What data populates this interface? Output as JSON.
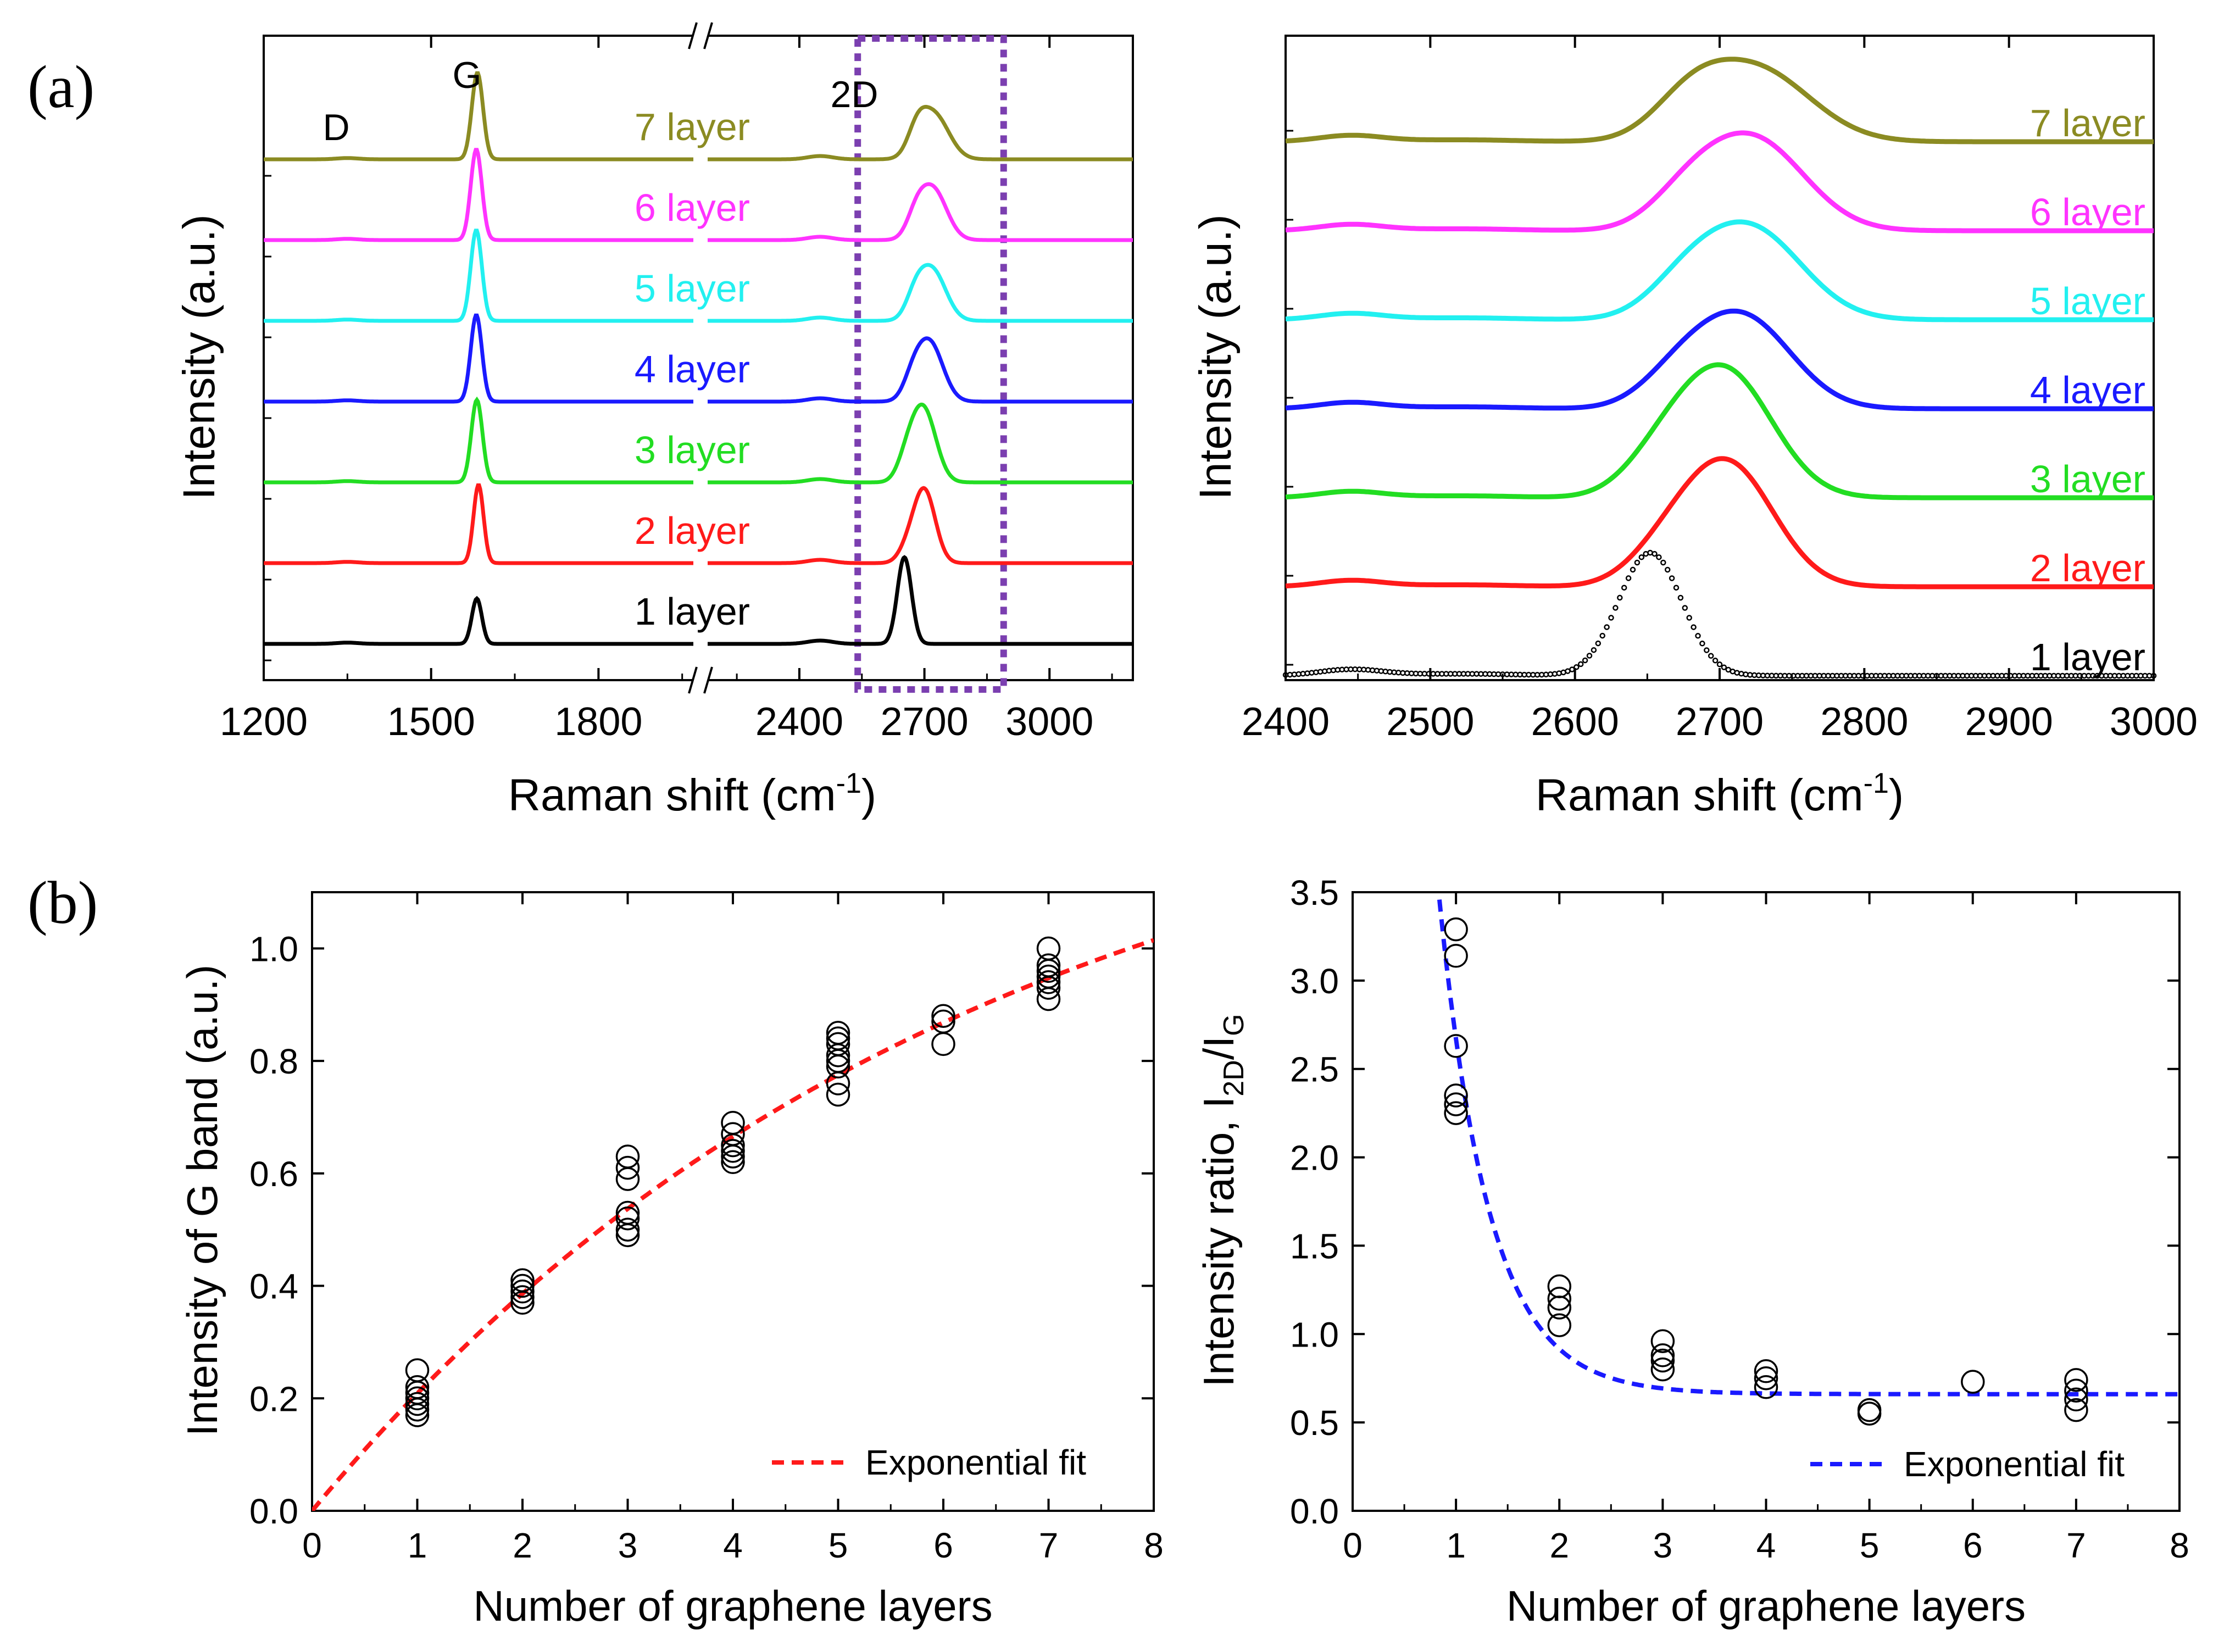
{
  "panel_labels": {
    "a": "(a)",
    "b": "(b)"
  },
  "chart_data": [
    {
      "id": "a_left",
      "type": "line",
      "ylabel": "Intensity (a.u.)",
      "xlabel": "Raman shift (cm",
      "xlabel_sup": "-1",
      "xlabel_close": ")",
      "x_tick_labels": [
        "1200",
        "1500",
        "1800",
        "2400",
        "2700",
        "3000"
      ],
      "x_break_marker": "//",
      "xlim_segments": [
        [
          1200,
          1970
        ],
        [
          2180,
          3200
        ]
      ],
      "peak_labels": [
        "D",
        "G",
        "2D"
      ],
      "highlight_box_range": [
        2540,
        2890
      ],
      "highlight_box_color": "#7b3fb0",
      "series": [
        {
          "name": "1 layer",
          "color": "#000000",
          "offset": 0,
          "g_height": 0.55,
          "g_center": 1582,
          "g_width": 9,
          "d2_height": 1.05,
          "d2_center": 2652,
          "d2_width": 17,
          "shoulder_height": 0
        },
        {
          "name": "2 layer",
          "color": "#ff1a1a",
          "offset": 1,
          "g_height": 0.95,
          "g_center": 1585,
          "g_width": 9,
          "d2_height": 0.88,
          "d2_center": 2700,
          "d2_width": 26,
          "shoulder_height": 0.15
        },
        {
          "name": "3 layer",
          "color": "#22dd22",
          "offset": 2,
          "g_height": 1.0,
          "g_center": 1582,
          "g_width": 10,
          "d2_height": 0.9,
          "d2_center": 2697,
          "d2_width": 30,
          "shoulder_height": 0.2
        },
        {
          "name": "4 layer",
          "color": "#1a1aff",
          "offset": 3,
          "g_height": 1.05,
          "g_center": 1581,
          "g_width": 10,
          "d2_height": 0.72,
          "d2_center": 2712,
          "d2_width": 32,
          "shoulder_height": 0.2
        },
        {
          "name": "5 layer",
          "color": "#22f0f0",
          "offset": 4,
          "g_height": 1.1,
          "g_center": 1581,
          "g_width": 10,
          "d2_height": 0.62,
          "d2_center": 2718,
          "d2_width": 33,
          "shoulder_height": 0.22
        },
        {
          "name": "6 layer",
          "color": "#ff33ff",
          "offset": 5,
          "g_height": 1.1,
          "g_center": 1581,
          "g_width": 10,
          "d2_height": 0.62,
          "d2_center": 2720,
          "d2_width": 33,
          "shoulder_height": 0.22
        },
        {
          "name": "7 layer",
          "color": "#8b8b22",
          "offset": 6,
          "g_height": 1.05,
          "g_center": 1583,
          "g_width": 10,
          "d2_height": 0.55,
          "d2_center": 2722,
          "d2_width": 36,
          "shoulder_height": 0.25
        }
      ]
    },
    {
      "id": "a_right",
      "type": "line",
      "ylabel": "Intensity (a.u.)",
      "xlabel": "Raman shift (cm",
      "xlabel_sup": "-1",
      "xlabel_close": ")",
      "xlim": [
        2400,
        3000
      ],
      "x_ticks": [
        2400,
        2500,
        2600,
        2700,
        2800,
        2900,
        3000
      ],
      "series": [
        {
          "name": "1 layer",
          "color": "#000000",
          "offset": 0,
          "height": 1.6,
          "center": 2652,
          "width": 22,
          "shoulder_height": 0,
          "dotted": true
        },
        {
          "name": "2 layer",
          "color": "#ff1a1a",
          "offset": 1,
          "height": 1.6,
          "center": 2705,
          "width": 32,
          "shoulder_height": 0.3,
          "dotted": false
        },
        {
          "name": "3 layer",
          "color": "#22dd22",
          "offset": 2,
          "height": 1.65,
          "center": 2703,
          "width": 33,
          "shoulder_height": 0.35,
          "dotted": false
        },
        {
          "name": "4 layer",
          "color": "#1a1aff",
          "offset": 3,
          "height": 1.2,
          "center": 2715,
          "width": 34,
          "shoulder_height": 0.3,
          "dotted": false
        },
        {
          "name": "5 layer",
          "color": "#22f0f0",
          "offset": 4,
          "height": 1.2,
          "center": 2720,
          "width": 36,
          "shoulder_height": 0.3,
          "dotted": false
        },
        {
          "name": "6 layer",
          "color": "#ff33ff",
          "offset": 5,
          "height": 1.2,
          "center": 2722,
          "width": 36,
          "shoulder_height": 0.3,
          "dotted": false
        },
        {
          "name": "7 layer",
          "color": "#8b8b22",
          "offset": 6,
          "height": 0.95,
          "center": 2724,
          "width": 38,
          "shoulder_height": 0.4,
          "dotted": false
        }
      ]
    },
    {
      "id": "b_left",
      "type": "scatter",
      "xlabel": "Number of graphene layers",
      "ylabel": "Intensity of G band (a.u.)",
      "xlim": [
        0,
        8
      ],
      "ylim": [
        0,
        1.1
      ],
      "x_ticks": [
        0,
        1,
        2,
        3,
        4,
        5,
        6,
        7,
        8
      ],
      "y_ticks": [
        0.0,
        0.2,
        0.4,
        0.6,
        0.8,
        1.0
      ],
      "points": [
        [
          1,
          0.17
        ],
        [
          1,
          0.18
        ],
        [
          1,
          0.19
        ],
        [
          1,
          0.2
        ],
        [
          1,
          0.21
        ],
        [
          1,
          0.22
        ],
        [
          1,
          0.25
        ],
        [
          2,
          0.37
        ],
        [
          2,
          0.38
        ],
        [
          2,
          0.39
        ],
        [
          2,
          0.4
        ],
        [
          2,
          0.41
        ],
        [
          3,
          0.49
        ],
        [
          3,
          0.5
        ],
        [
          3,
          0.52
        ],
        [
          3,
          0.53
        ],
        [
          3,
          0.59
        ],
        [
          3,
          0.61
        ],
        [
          3,
          0.63
        ],
        [
          4,
          0.62
        ],
        [
          4,
          0.63
        ],
        [
          4,
          0.64
        ],
        [
          4,
          0.65
        ],
        [
          4,
          0.67
        ],
        [
          4,
          0.69
        ],
        [
          5,
          0.74
        ],
        [
          5,
          0.76
        ],
        [
          5,
          0.79
        ],
        [
          5,
          0.8
        ],
        [
          5,
          0.81
        ],
        [
          5,
          0.83
        ],
        [
          5,
          0.84
        ],
        [
          5,
          0.85
        ],
        [
          6,
          0.83
        ],
        [
          6,
          0.87
        ],
        [
          6,
          0.88
        ],
        [
          7,
          0.91
        ],
        [
          7,
          0.93
        ],
        [
          7,
          0.94
        ],
        [
          7,
          0.95
        ],
        [
          7,
          0.96
        ],
        [
          7,
          0.97
        ],
        [
          7,
          1.0
        ]
      ],
      "fit": {
        "name": "Exponential fit",
        "color": "#ff1a1a",
        "style": "dashed",
        "amplitude": 1.4,
        "scale": 6.2,
        "offset": 0,
        "x_range": [
          0,
          8
        ]
      }
    },
    {
      "id": "b_right",
      "type": "scatter",
      "xlabel": "Number of graphene layers",
      "ylabel": "Intensity ratio, I",
      "ylabel_sub1": "2D",
      "ylabel_mid": "/I",
      "ylabel_sub2": "G",
      "xlim": [
        0,
        8
      ],
      "ylim": [
        0,
        3.5
      ],
      "x_ticks": [
        0,
        1,
        2,
        3,
        4,
        5,
        6,
        7,
        8
      ],
      "y_ticks": [
        0.0,
        0.5,
        1.0,
        1.5,
        2.0,
        2.5,
        3.0,
        3.5
      ],
      "points": [
        [
          1,
          2.25
        ],
        [
          1,
          2.3
        ],
        [
          1,
          2.35
        ],
        [
          1,
          2.63
        ],
        [
          1,
          3.14
        ],
        [
          1,
          3.29
        ],
        [
          2,
          1.05
        ],
        [
          2,
          1.15
        ],
        [
          2,
          1.2
        ],
        [
          2,
          1.27
        ],
        [
          3,
          0.8
        ],
        [
          3,
          0.85
        ],
        [
          3,
          0.88
        ],
        [
          3,
          0.96
        ],
        [
          4,
          0.7
        ],
        [
          4,
          0.75
        ],
        [
          4,
          0.79
        ],
        [
          5,
          0.55
        ],
        [
          5,
          0.57
        ],
        [
          6,
          0.73
        ],
        [
          7,
          0.57
        ],
        [
          7,
          0.63
        ],
        [
          7,
          0.68
        ],
        [
          7,
          0.74
        ]
      ],
      "fit": {
        "name": "Exponential fit",
        "color": "#1a1aff",
        "style": "dashed",
        "asymptote": 0.66,
        "amplitude": 15.8,
        "scale": 0.485,
        "x_range": [
          0.65,
          8
        ]
      }
    }
  ]
}
